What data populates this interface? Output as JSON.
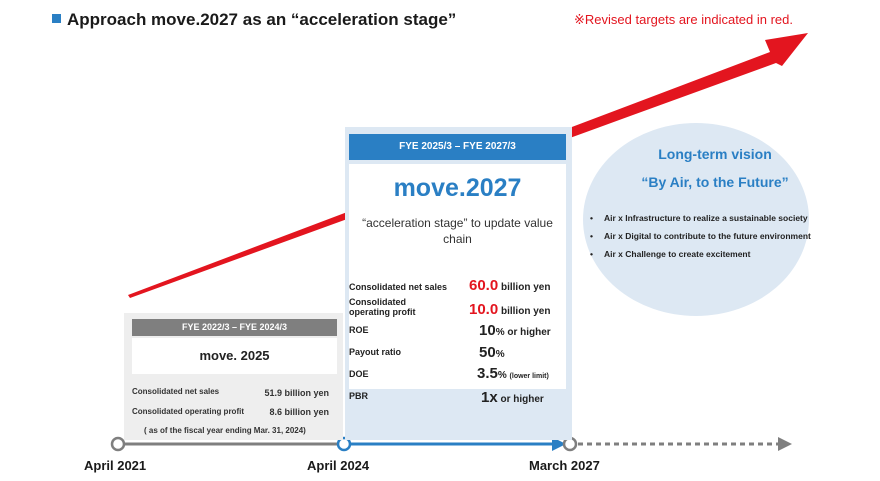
{
  "header": {
    "title": "Approach move.2027 as an “acceleration stage”",
    "note": "※Revised targets are indicated in red."
  },
  "colors": {
    "accent": "#2a7fc4",
    "red": "#e3151f",
    "gray": "#7f7f7f",
    "light_blue": "#dde8f3"
  },
  "move2025": {
    "period": "FYE 2022/3 – FYE 2024/3",
    "name": "move. 2025",
    "rows": [
      {
        "label": "Consolidated net sales",
        "value": "51.9 billion yen"
      },
      {
        "label": "Consolidated operating profit",
        "value": "8.6 billion yen"
      }
    ],
    "footnote": "( as of the fiscal year ending Mar. 31, 2024)"
  },
  "move2027": {
    "period": "FYE 2025/3 – FYE 2027/3",
    "name": "move.2027",
    "subtitle": "“acceleration stage” to update value chain",
    "metrics": [
      {
        "label": "Consolidated net sales",
        "value": "60.0",
        "unit": "billion yen"
      },
      {
        "label": "Consolidated operating profit",
        "value": "10.0",
        "unit": "billion yen"
      },
      {
        "label": "ROE",
        "value": "10",
        "unit": "% or higher"
      },
      {
        "label": "Payout ratio",
        "value": "50",
        "unit": "%"
      },
      {
        "label": "DOE",
        "value": "3.5",
        "unit": "%",
        "unit_note": "(lower limit)"
      },
      {
        "label": "PBR",
        "value": "1x",
        "unit": "or higher"
      }
    ]
  },
  "vision": {
    "title": "Long-term vision",
    "slogan": "“By Air, to the Future”",
    "bullets": [
      "Air x Infrastructure to realize a sustainable society",
      "Air x Digital to contribute to the future environment",
      "Air x Challenge to create excitement"
    ]
  },
  "timeline": {
    "labels": [
      "April 2021",
      "April 2024",
      "March 2027"
    ]
  }
}
